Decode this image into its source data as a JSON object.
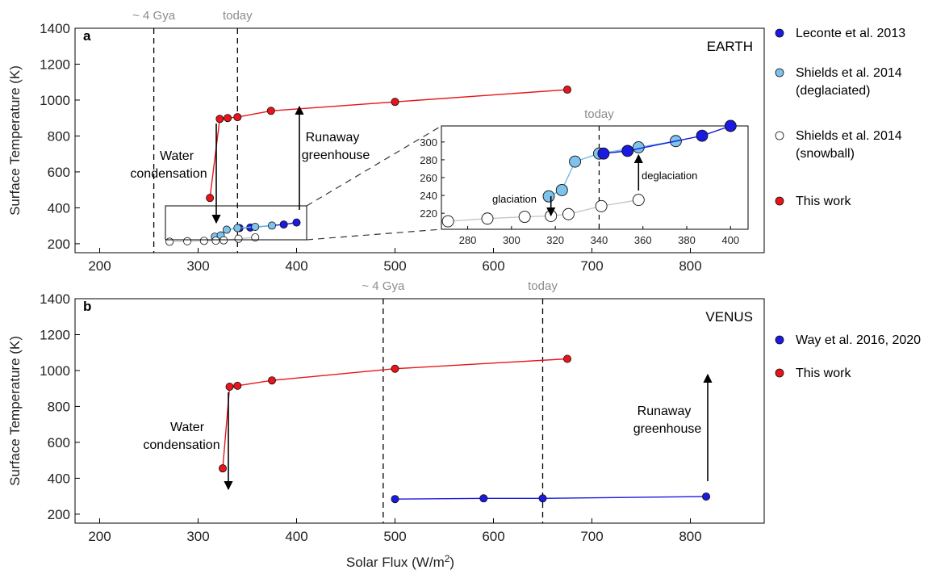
{
  "colors": {
    "red": "#e8141a",
    "dark_blue": "#1a1ae0",
    "light_blue": "#7ec3ec",
    "open": "#ffffff",
    "red_line": "#e8141a",
    "blue_line": "#1a1ae0",
    "light_line": "#6fb9e8",
    "grey_line": "#c8c8c8",
    "gray_text": "#8c8c8c"
  },
  "xlabel_main": "Solar Flux (W/m",
  "xlabel_sup": "2",
  "xlabel_end": ")",
  "chart_data": [
    {
      "panel": "a",
      "type": "line",
      "title": "EARTH",
      "ylabel": "Surface Temperature (K)",
      "xlim": [
        175,
        875
      ],
      "ylim": [
        150,
        1400
      ],
      "xticks": [
        200,
        300,
        400,
        500,
        600,
        700,
        800
      ],
      "yticks": [
        200,
        400,
        600,
        800,
        1000,
        1200,
        1400
      ],
      "vlines": [
        {
          "x": 255,
          "label": "~ 4 Gya"
        },
        {
          "x": 340,
          "label": "today"
        }
      ],
      "legend_position": "outside-right",
      "legend": [
        "Leconte et al. 2013",
        "Shields et al. 2014 (deglaciated)",
        "Shields et al. 2014 (snowball)",
        "This work"
      ],
      "series": [
        {
          "name": "This work",
          "style": "red",
          "x": [
            312,
            322,
            330,
            340,
            374,
            500,
            675
          ],
          "y": [
            455,
            895,
            900,
            905,
            940,
            990,
            1058
          ]
        },
        {
          "name": "Leconte et al. 2013",
          "style": "dark_blue",
          "x": [
            342,
            353,
            387,
            400
          ],
          "y": [
            287,
            290,
            307,
            318
          ]
        },
        {
          "name": "Shields et al. 2014 (deglaciated)",
          "style": "light_blue",
          "x": [
            317,
            323,
            329,
            340,
            358,
            375
          ],
          "y": [
            239,
            246,
            278,
            287,
            294,
            301
          ]
        },
        {
          "name": "Shields et al. 2014 (snowball)",
          "style": "open",
          "x": [
            271,
            289,
            306,
            318,
            326,
            341,
            358
          ],
          "y": [
            211,
            214,
            216,
            217,
            219,
            228,
            235
          ]
        }
      ],
      "annotations": [
        {
          "text": "Water condensation",
          "lines": [
            "Water",
            "condensation"
          ]
        },
        {
          "text": "Runaway greenhouse",
          "lines": [
            "Runaway",
            "greenhouse"
          ]
        }
      ],
      "inset": {
        "xlim": [
          268,
          408
        ],
        "ylim": [
          202,
          318
        ],
        "xticks": [
          280,
          300,
          320,
          340,
          360,
          380,
          400
        ],
        "yticks": [
          220,
          240,
          260,
          280,
          300
        ],
        "vline": {
          "x": 340,
          "label": "today"
        },
        "annotations": [
          "glaciation",
          "deglaciation"
        ]
      }
    },
    {
      "panel": "b",
      "type": "line",
      "title": "VENUS",
      "ylabel": "Surface Temperature (K)",
      "xlim": [
        175,
        875
      ],
      "ylim": [
        150,
        1400
      ],
      "xticks": [
        200,
        300,
        400,
        500,
        600,
        700,
        800
      ],
      "yticks": [
        200,
        400,
        600,
        800,
        1000,
        1200,
        1400
      ],
      "vlines": [
        {
          "x": 488,
          "label": "~ 4 Gya"
        },
        {
          "x": 650,
          "label": "today"
        }
      ],
      "legend_position": "outside-right",
      "legend": [
        "Way et al. 2016, 2020",
        "This work"
      ],
      "series": [
        {
          "name": "This work",
          "style": "red",
          "x": [
            325,
            332,
            340,
            375,
            500,
            675
          ],
          "y": [
            455,
            910,
            915,
            945,
            1010,
            1065
          ]
        },
        {
          "name": "Way et al. 2016, 2020",
          "style": "dark_blue",
          "x": [
            500,
            590,
            650,
            816
          ],
          "y": [
            284,
            288,
            288,
            298
          ]
        }
      ],
      "annotations": [
        {
          "text": "Water condensation",
          "lines": [
            "Water",
            "condensation"
          ]
        },
        {
          "text": "Runaway greenhouse",
          "lines": [
            "Runaway",
            "greenhouse"
          ]
        }
      ]
    }
  ]
}
